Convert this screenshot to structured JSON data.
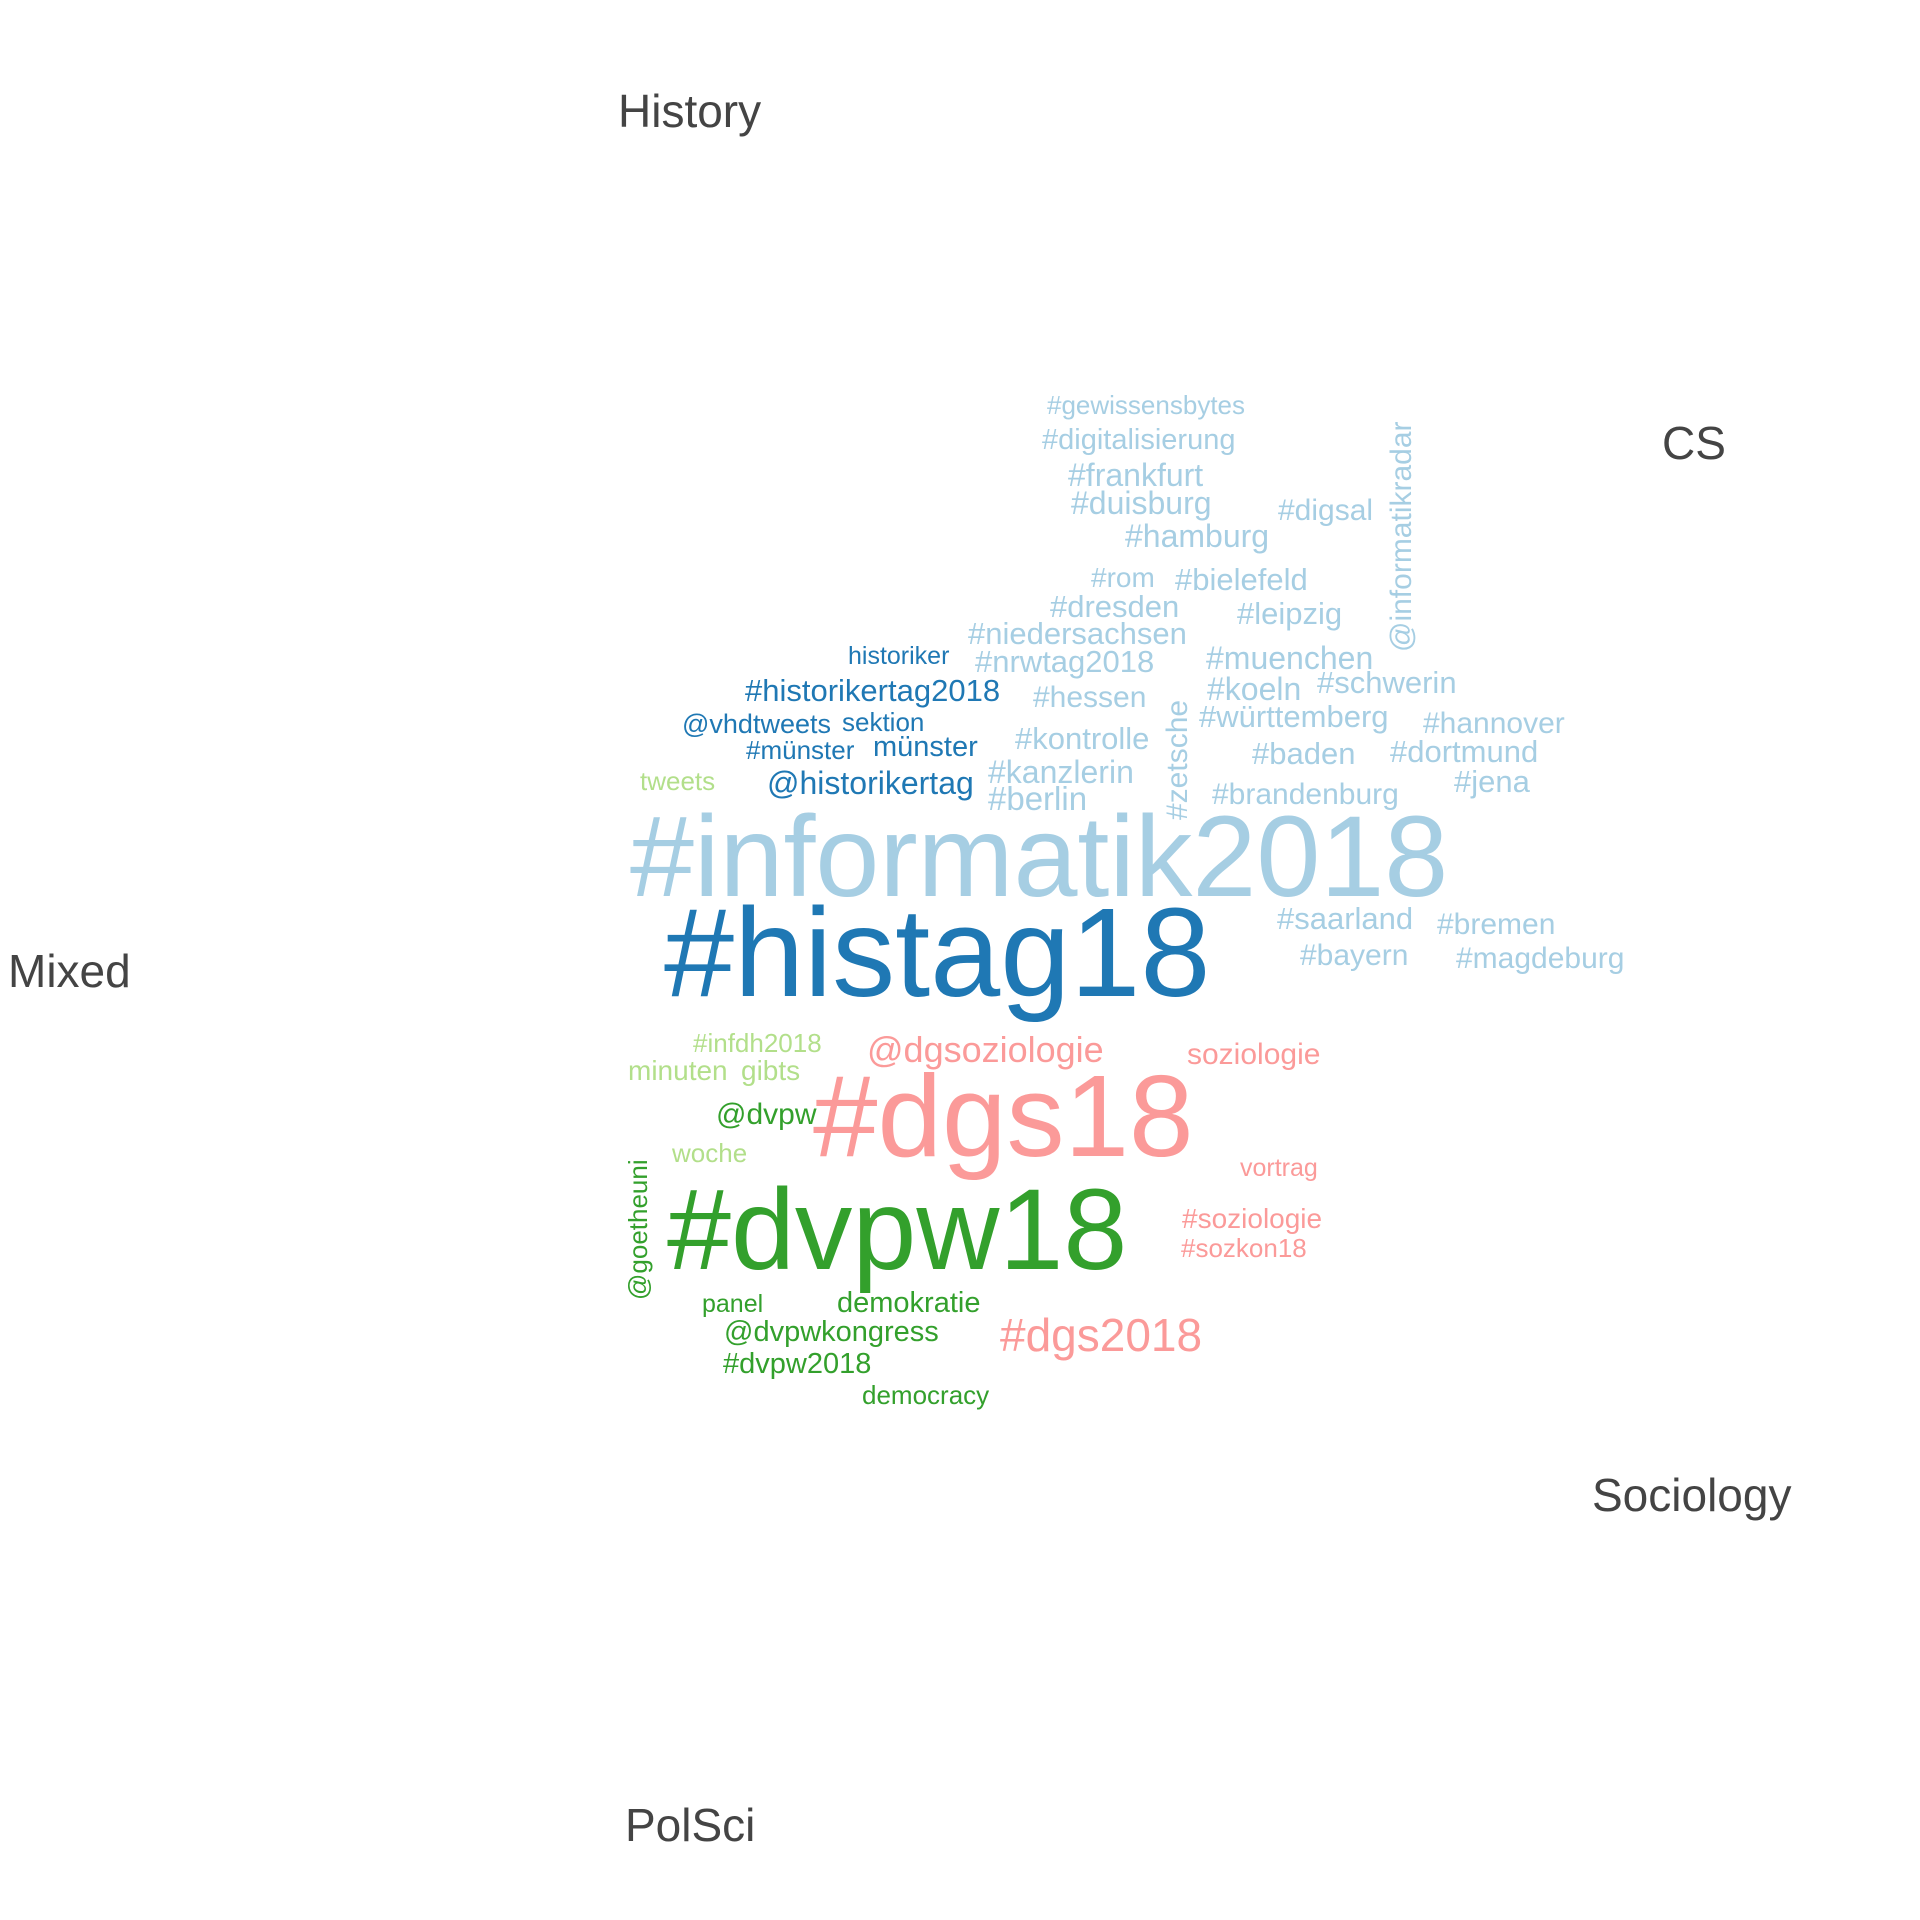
{
  "colors": {
    "cs": "#a6cee3",
    "history": "#1f78b4",
    "mixed": "#b2df8a",
    "polsci": "#33a02c",
    "sociology": "#fb9a99",
    "label": "#444444"
  },
  "group_labels": {
    "history": "History",
    "cs": "CS",
    "mixed": "Mixed",
    "sociology": "Sociology",
    "polsci": "PolSci"
  },
  "words": [
    {
      "text": "#gewissensbytes",
      "group": "cs"
    },
    {
      "text": "#digitalisierung",
      "group": "cs"
    },
    {
      "text": "#frankfurt",
      "group": "cs"
    },
    {
      "text": "#duisburg",
      "group": "cs"
    },
    {
      "text": "#digsal",
      "group": "cs"
    },
    {
      "text": "#hamburg",
      "group": "cs"
    },
    {
      "text": "@informatikradar",
      "group": "cs"
    },
    {
      "text": "#rom",
      "group": "cs"
    },
    {
      "text": "#bielefeld",
      "group": "cs"
    },
    {
      "text": "#dresden",
      "group": "cs"
    },
    {
      "text": "#leipzig",
      "group": "cs"
    },
    {
      "text": "#niedersachsen",
      "group": "cs"
    },
    {
      "text": "#nrwtag2018",
      "group": "cs"
    },
    {
      "text": "#muenchen",
      "group": "cs"
    },
    {
      "text": "#hessen",
      "group": "cs"
    },
    {
      "text": "#koeln",
      "group": "cs"
    },
    {
      "text": "#schwerin",
      "group": "cs"
    },
    {
      "text": "#zetsche",
      "group": "cs"
    },
    {
      "text": "#württemberg",
      "group": "cs"
    },
    {
      "text": "#hannover",
      "group": "cs"
    },
    {
      "text": "#kontrolle",
      "group": "cs"
    },
    {
      "text": "#baden",
      "group": "cs"
    },
    {
      "text": "#dortmund",
      "group": "cs"
    },
    {
      "text": "#kanzlerin",
      "group": "cs"
    },
    {
      "text": "#jena",
      "group": "cs"
    },
    {
      "text": "#berlin",
      "group": "cs"
    },
    {
      "text": "#brandenburg",
      "group": "cs"
    },
    {
      "text": "#informatik2018",
      "group": "cs"
    },
    {
      "text": "#saarland",
      "group": "cs"
    },
    {
      "text": "#bremen",
      "group": "cs"
    },
    {
      "text": "#bayern",
      "group": "cs"
    },
    {
      "text": "#magdeburg",
      "group": "cs"
    },
    {
      "text": "historiker",
      "group": "history"
    },
    {
      "text": "#historikertag2018",
      "group": "history"
    },
    {
      "text": "@vhdtweets",
      "group": "history"
    },
    {
      "text": "sektion",
      "group": "history"
    },
    {
      "text": "#münster",
      "group": "history"
    },
    {
      "text": "münster",
      "group": "history"
    },
    {
      "text": "@historikertag",
      "group": "history"
    },
    {
      "text": "#histag18",
      "group": "history"
    },
    {
      "text": "tweets",
      "group": "mixed"
    },
    {
      "text": "#infdh2018",
      "group": "mixed"
    },
    {
      "text": "minuten",
      "group": "mixed"
    },
    {
      "text": "gibts",
      "group": "mixed"
    },
    {
      "text": "woche",
      "group": "mixed"
    },
    {
      "text": "@dgsoziologie",
      "group": "sociology"
    },
    {
      "text": "soziologie",
      "group": "sociology"
    },
    {
      "text": "#dgs18",
      "group": "sociology"
    },
    {
      "text": "vortrag",
      "group": "sociology"
    },
    {
      "text": "#soziologie",
      "group": "sociology"
    },
    {
      "text": "#sozkon18",
      "group": "sociology"
    },
    {
      "text": "#dgs2018",
      "group": "sociology"
    },
    {
      "text": "@dvpw",
      "group": "polsci"
    },
    {
      "text": "@goetheuni",
      "group": "polsci"
    },
    {
      "text": "#dvpw18",
      "group": "polsci"
    },
    {
      "text": "panel",
      "group": "polsci"
    },
    {
      "text": "demokratie",
      "group": "polsci"
    },
    {
      "text": "@dvpwkongress",
      "group": "polsci"
    },
    {
      "text": "#dvpw2018",
      "group": "polsci"
    },
    {
      "text": "democracy",
      "group": "polsci"
    }
  ]
}
